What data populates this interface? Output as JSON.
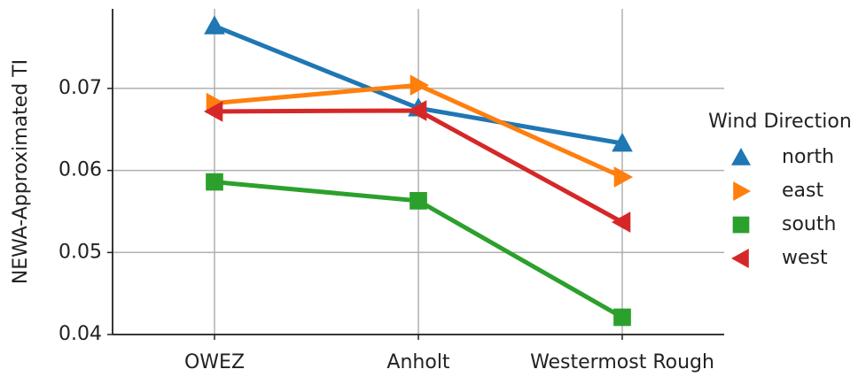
{
  "chart_data": {
    "type": "line",
    "y_label": "NEWA-Approximated TI",
    "categories": [
      "OWEZ",
      "Anholt",
      "Westermost Rough"
    ],
    "series": [
      {
        "name": "north",
        "color": "#1f77b4",
        "marker": "^",
        "values": [
          0.0776,
          0.0676,
          0.0633
        ]
      },
      {
        "name": "east",
        "color": "#ff7f0e",
        "marker": ">",
        "values": [
          0.0682,
          0.0704,
          0.0592
        ]
      },
      {
        "name": "south",
        "color": "#2ca02c",
        "marker": "s",
        "values": [
          0.0586,
          0.0563,
          0.0421
        ]
      },
      {
        "name": "west",
        "color": "#d62728",
        "marker": "<",
        "values": [
          0.0672,
          0.0673,
          0.0537
        ]
      }
    ],
    "ylim": [
      0.04,
      0.0797
    ],
    "yticks": [
      0.04,
      0.05,
      0.06,
      0.07
    ],
    "grid": true,
    "legend_title": "Wind Direction",
    "legend": "outside right"
  }
}
